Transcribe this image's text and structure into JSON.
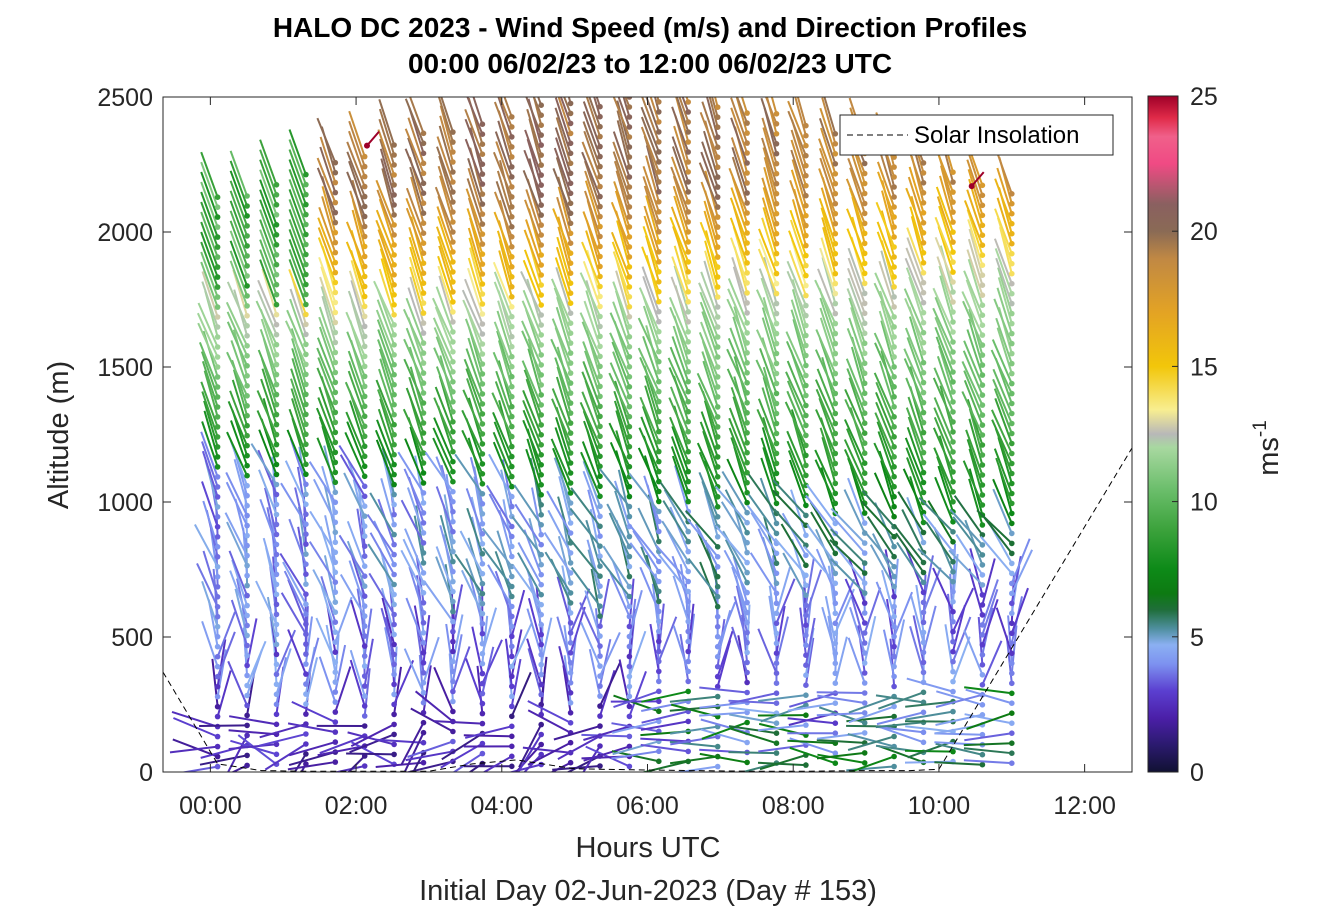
{
  "chart_data": {
    "type": "wind-barb-profile",
    "title": "HALO DC 2023 - Wind Speed (m/s) and Direction Profiles",
    "subtitle": "00:00 06/02/23 to 12:00 06/02/23  UTC",
    "xlabel": "Hours UTC",
    "xlabel_sub": "Initial Day 02-Jun-2023 (Day # 153)",
    "ylabel": "Altitude (m)",
    "colorbar_label": "ms",
    "colorbar_label_exp": "-1",
    "x_ticks": [
      "00:00",
      "02:00",
      "04:00",
      "06:00",
      "08:00",
      "10:00",
      "12:00"
    ],
    "x_tick_hours": [
      0,
      2,
      4,
      6,
      8,
      10,
      12
    ],
    "xlim_hours": [
      -0.65,
      12.65
    ],
    "y_ticks": [
      0,
      500,
      1000,
      1500,
      2000,
      2500
    ],
    "ylim": [
      0,
      2500
    ],
    "colorbar_ticks": [
      0,
      5,
      10,
      15,
      20,
      25
    ],
    "colorbar_range": [
      0,
      25
    ],
    "legend": {
      "label": "Solar Insolation",
      "position": "top-right"
    },
    "profile_time_range_hours": [
      0.1,
      11.0
    ],
    "solar_insolation": {
      "hours": [
        -0.65,
        0.1,
        0.7,
        1.3,
        2.1,
        3.0,
        3.6,
        4.2,
        5.0,
        5.8,
        6.6,
        7.4,
        8.2,
        9.0,
        9.6,
        10.0,
        12.65
      ],
      "values": [
        370,
        30,
        5,
        3,
        3,
        3,
        30,
        45,
        12,
        8,
        5,
        3,
        3,
        5,
        5,
        10,
        1200
      ]
    },
    "layers": [
      {
        "z_range": [
          0,
          500
        ],
        "speed_ms": 2.5,
        "direction": "variable"
      },
      {
        "z_range": [
          500,
          1000
        ],
        "speed_ms": 3.5,
        "direction": "westerly"
      },
      {
        "z_range": [
          1000,
          1650
        ],
        "speed_ms": 8.5,
        "direction": "west-southwesterly"
      },
      {
        "z_range": [
          1650,
          2500
        ],
        "speed_ms": 16.5,
        "direction": "west-southwesterly"
      }
    ]
  },
  "colors": {
    "colormap": [
      [
        0,
        "#111133"
      ],
      [
        1,
        "#2b1a6e"
      ],
      [
        2,
        "#4b1fa8"
      ],
      [
        3,
        "#5b3fd0"
      ],
      [
        4,
        "#7d92f0"
      ],
      [
        4.7,
        "#8bb0f2"
      ],
      [
        5.3,
        "#4f8f9f"
      ],
      [
        6,
        "#1f6e3a"
      ],
      [
        6.6,
        "#0d7a12"
      ],
      [
        7.5,
        "#0d8a18"
      ],
      [
        9,
        "#3da33d"
      ],
      [
        10.5,
        "#6dbf6d"
      ],
      [
        12,
        "#a8d8a0"
      ],
      [
        12.5,
        "#b8b8b8"
      ],
      [
        13.4,
        "#f8ee90"
      ],
      [
        15,
        "#f2c60a"
      ],
      [
        17,
        "#e3a324"
      ],
      [
        19,
        "#c08844"
      ],
      [
        20,
        "#8a6a55"
      ],
      [
        21,
        "#8a6060"
      ],
      [
        22.5,
        "#f04a84"
      ],
      [
        23.5,
        "#f0608a"
      ],
      [
        24.2,
        "#e02a48"
      ],
      [
        25,
        "#9e0028"
      ]
    ]
  }
}
